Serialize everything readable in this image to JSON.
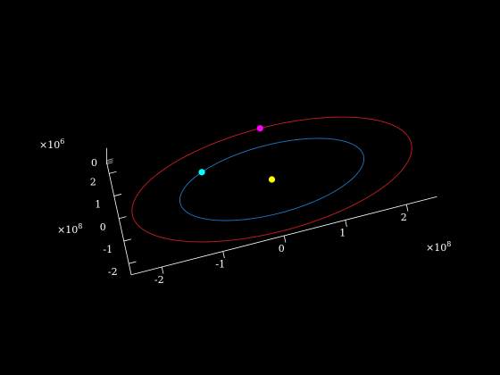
{
  "chart_data": {
    "type": "line",
    "projection": "3d",
    "background": "#000000",
    "axis_color": "#ffffff",
    "x_axis": {
      "ticks": [
        -2,
        -1,
        0,
        1,
        2
      ],
      "tick_labels": [
        "-2",
        "-1",
        "0",
        "1",
        "2"
      ],
      "exponent_base": "×10",
      "exponent_power": "8",
      "range": [
        -2.5,
        2.5
      ]
    },
    "y_axis": {
      "ticks": [
        -2,
        -1,
        0,
        1,
        2
      ],
      "tick_labels": [
        "-2",
        "-1",
        "0",
        "1",
        "2"
      ],
      "exponent_base": "×10",
      "exponent_power": "8",
      "range": [
        -2.5,
        2.5
      ]
    },
    "z_axis": {
      "ticks": [
        0
      ],
      "tick_labels": [
        "0"
      ],
      "exponent_base": "×10",
      "exponent_power": "6"
    },
    "series": [
      {
        "kind": "orbit",
        "color": "#1f77c4",
        "radius": 1.5
      },
      {
        "kind": "orbit",
        "color": "#c81e1e",
        "radius": 2.28
      }
    ],
    "points": [
      {
        "color": "#ffff00",
        "x": 0,
        "y": 0,
        "z": 0
      },
      {
        "color": "#00ffff",
        "x": -1.06,
        "y": 1.06,
        "z": 0
      },
      {
        "color": "#ff00ff",
        "x": -0.01,
        "y": 2.28,
        "z": 0
      }
    ]
  }
}
